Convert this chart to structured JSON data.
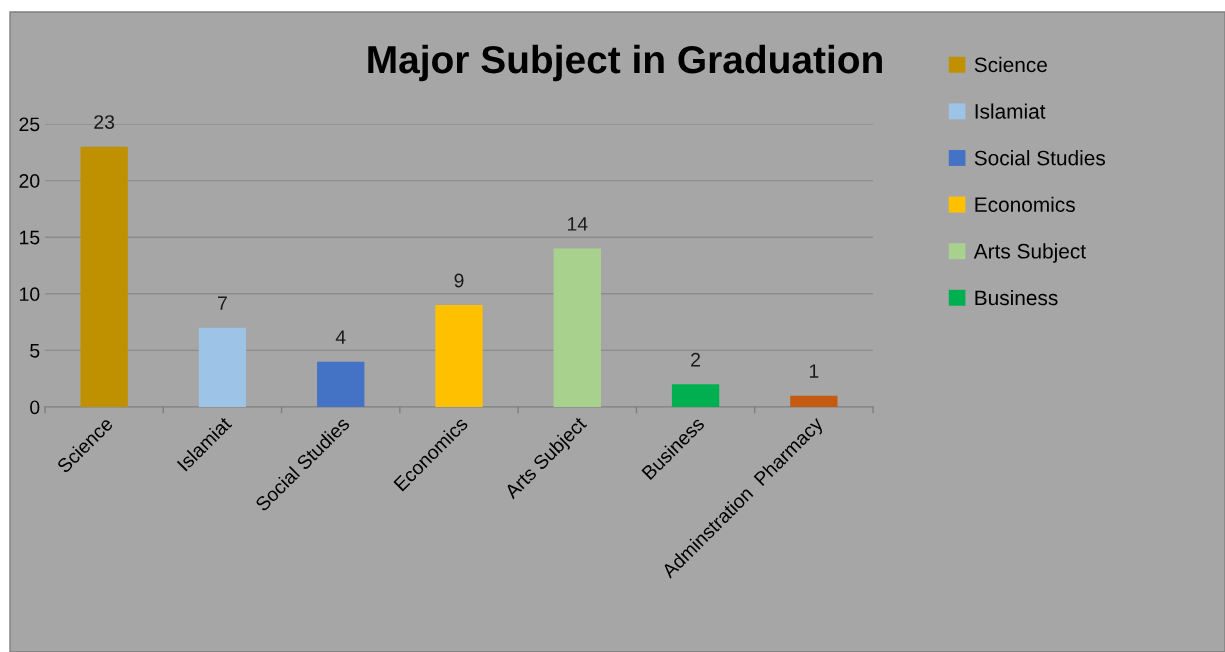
{
  "chart_data": {
    "type": "bar",
    "title": "Major Subject in Graduation",
    "categories": [
      "Science",
      "Islamiat",
      "Social Studies",
      "Economics",
      "Arts Subject",
      "Business",
      "Adminstration  Pharmacy"
    ],
    "series": [
      {
        "name": "Science",
        "color": "#bf9000",
        "values": [
          23,
          null,
          null,
          null,
          null,
          null,
          null
        ]
      },
      {
        "name": "Islamiat",
        "color": "#9dc3e6",
        "values": [
          null,
          7,
          null,
          null,
          null,
          null,
          null
        ]
      },
      {
        "name": "Social Studies",
        "color": "#4472c4",
        "values": [
          null,
          null,
          4,
          null,
          null,
          null,
          null
        ]
      },
      {
        "name": "Economics",
        "color": "#ffc000",
        "values": [
          null,
          null,
          null,
          9,
          null,
          null,
          null
        ]
      },
      {
        "name": "Arts Subject",
        "color": "#a9d18e",
        "values": [
          null,
          null,
          null,
          null,
          14,
          null,
          null
        ]
      },
      {
        "name": "Business",
        "color": "#00b050",
        "values": [
          null,
          null,
          null,
          null,
          null,
          2,
          null
        ]
      },
      {
        "color": "#c55a11",
        "values": [
          null,
          null,
          null,
          null,
          null,
          null,
          1
        ]
      }
    ],
    "ylim": [
      0,
      25
    ],
    "yticks": [
      0,
      5,
      10,
      15,
      20,
      25
    ],
    "grid": "y",
    "legend": "right",
    "data_labels": true
  }
}
